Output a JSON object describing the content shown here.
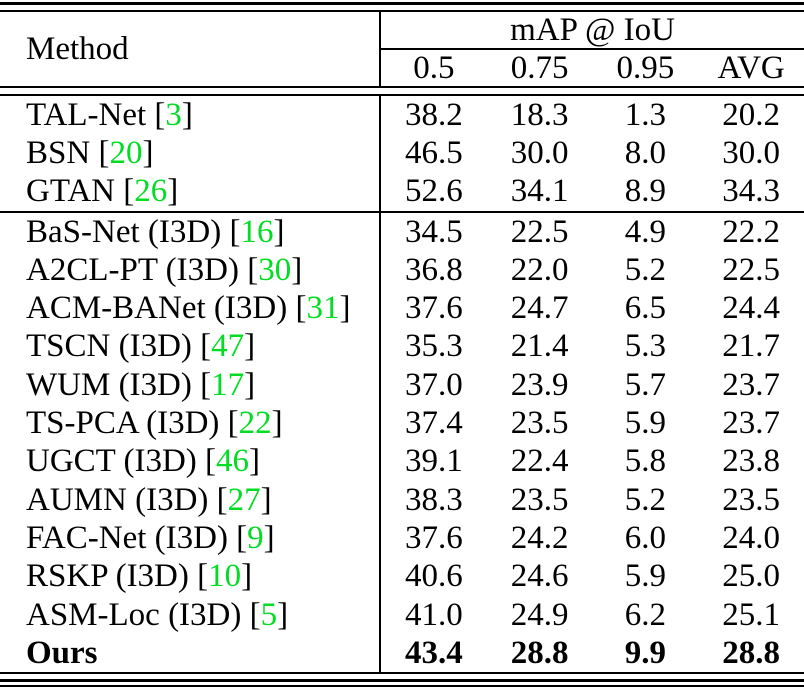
{
  "table": {
    "header": {
      "method_label": "Method",
      "group_label": "mAP @ IoU",
      "subheaders": [
        "0.5",
        "0.75",
        "0.95",
        "AVG"
      ]
    },
    "colors": {
      "citation_green": "#00DD22",
      "text": "#000000",
      "background": "#ffffff"
    },
    "groups": [
      {
        "rows": [
          {
            "label": "TAL-Net",
            "ref": "3",
            "bold": false,
            "values": [
              "38.2",
              "18.3",
              "1.3",
              "20.2"
            ]
          },
          {
            "label": "BSN",
            "ref": "20",
            "bold": false,
            "values": [
              "46.5",
              "30.0",
              "8.0",
              "30.0"
            ]
          },
          {
            "label": "GTAN",
            "ref": "26",
            "bold": false,
            "values": [
              "52.6",
              "34.1",
              "8.9",
              "34.3"
            ]
          }
        ]
      },
      {
        "rows": [
          {
            "label": "BaS-Net (I3D)",
            "ref": "16",
            "bold": false,
            "values": [
              "34.5",
              "22.5",
              "4.9",
              "22.2"
            ]
          },
          {
            "label": "A2CL-PT (I3D)",
            "ref": "30",
            "bold": false,
            "values": [
              "36.8",
              "22.0",
              "5.2",
              "22.5"
            ]
          },
          {
            "label": "ACM-BANet (I3D)",
            "ref": "31",
            "bold": false,
            "values": [
              "37.6",
              "24.7",
              "6.5",
              "24.4"
            ]
          },
          {
            "label": "TSCN (I3D)",
            "ref": "47",
            "bold": false,
            "values": [
              "35.3",
              "21.4",
              "5.3",
              "21.7"
            ]
          },
          {
            "label": "WUM (I3D)",
            "ref": "17",
            "bold": false,
            "values": [
              "37.0",
              "23.9",
              "5.7",
              "23.7"
            ]
          },
          {
            "label": "TS-PCA (I3D)",
            "ref": "22",
            "bold": false,
            "values": [
              "37.4",
              "23.5",
              "5.9",
              "23.7"
            ]
          },
          {
            "label": "UGCT (I3D)",
            "ref": "46",
            "bold": false,
            "values": [
              "39.1",
              "22.4",
              "5.8",
              "23.8"
            ]
          },
          {
            "label": "AUMN (I3D)",
            "ref": "27",
            "bold": false,
            "values": [
              "38.3",
              "23.5",
              "5.2",
              "23.5"
            ]
          },
          {
            "label": "FAC-Net (I3D)",
            "ref": "9",
            "bold": false,
            "values": [
              "37.6",
              "24.2",
              "6.0",
              "24.0"
            ]
          },
          {
            "label": "RSKP (I3D)",
            "ref": "10",
            "bold": false,
            "values": [
              "40.6",
              "24.6",
              "5.9",
              "25.0"
            ]
          },
          {
            "label": "ASM-Loc (I3D)",
            "ref": "5",
            "bold": false,
            "values": [
              "41.0",
              "24.9",
              "6.2",
              "25.1"
            ]
          },
          {
            "label": "Ours",
            "ref": "",
            "bold": true,
            "values": [
              "43.4",
              "28.8",
              "9.9",
              "28.8"
            ]
          }
        ]
      }
    ]
  }
}
